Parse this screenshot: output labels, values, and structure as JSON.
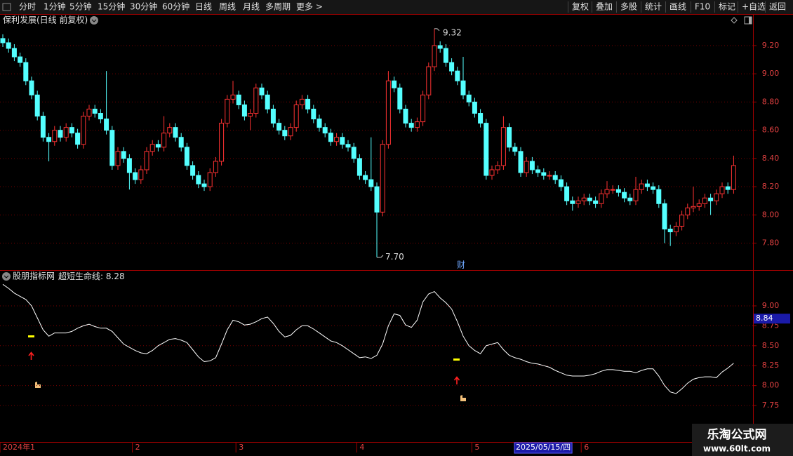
{
  "toolbar": {
    "periods": [
      "分时",
      "1分钟",
      "5分钟",
      "15分钟",
      "30分钟",
      "60分钟",
      "日线",
      "周线",
      "月线",
      "多周期",
      "更多 >"
    ],
    "active_period_index": 6,
    "actions": [
      "复权",
      "叠加",
      "多股",
      "统计",
      "画线",
      "F10",
      "标记",
      "+自选",
      "返回"
    ]
  },
  "watermark": {
    "title": "乐淘公式网",
    "url": "www.60lt.com"
  },
  "chart_data": [
    {
      "type": "candlestick",
      "title": "保利发展(日线 前复权)",
      "categories": [
        "2024年1",
        null,
        null,
        null,
        null,
        null,
        null,
        null,
        null,
        null,
        null,
        null,
        null,
        null,
        null,
        null,
        null,
        null,
        null,
        null,
        null,
        null,
        null,
        "2",
        null,
        null,
        null,
        null,
        null,
        null,
        null,
        null,
        null,
        null,
        null,
        null,
        null,
        null,
        null,
        null,
        null,
        "3",
        null,
        null,
        null,
        null,
        null,
        null,
        null,
        null,
        null,
        null,
        null,
        null,
        null,
        null,
        null,
        null,
        null,
        null,
        null,
        null,
        "4",
        null,
        null,
        null,
        null,
        null,
        null,
        null,
        null,
        null,
        null,
        null,
        null,
        null,
        null,
        null,
        null,
        null,
        null,
        null,
        "5",
        null,
        null,
        null,
        null,
        null,
        null,
        null,
        null,
        null,
        null,
        null,
        null,
        null,
        null,
        null,
        null,
        null,
        null,
        "6",
        null,
        null,
        null,
        null,
        null,
        null,
        null,
        null,
        null,
        null,
        null,
        null,
        null,
        null,
        null,
        null,
        null,
        null,
        null,
        null,
        null,
        null,
        null,
        null,
        null,
        null
      ],
      "open": [
        9.25,
        9.22,
        9.18,
        9.12,
        9.08,
        8.95,
        8.85,
        8.7,
        8.55,
        8.52,
        8.6,
        8.55,
        8.62,
        8.58,
        8.5,
        8.7,
        8.75,
        8.72,
        8.68,
        8.6,
        8.35,
        8.45,
        8.4,
        8.3,
        8.25,
        8.32,
        8.45,
        8.5,
        8.48,
        8.58,
        8.62,
        8.55,
        8.48,
        8.35,
        8.28,
        8.22,
        8.2,
        8.3,
        8.38,
        8.65,
        8.82,
        8.85,
        8.78,
        8.7,
        8.72,
        8.9,
        8.85,
        8.75,
        8.65,
        8.6,
        8.56,
        8.62,
        8.78,
        8.82,
        8.75,
        8.68,
        8.62,
        8.58,
        8.52,
        8.55,
        8.5,
        8.48,
        8.4,
        8.28,
        8.25,
        8.2,
        8.02,
        8.5,
        8.95,
        8.9,
        8.75,
        8.65,
        8.62,
        8.66,
        8.85,
        9.05,
        9.2,
        9.18,
        9.08,
        9.02,
        8.95,
        8.85,
        8.8,
        8.72,
        8.65,
        8.28,
        8.32,
        8.35,
        8.62,
        8.48,
        8.45,
        8.3,
        8.38,
        8.32,
        8.3,
        8.28,
        8.28,
        8.25,
        8.2,
        8.1,
        8.08,
        8.1,
        8.12,
        8.1,
        8.08,
        8.15,
        8.18,
        8.18,
        8.16,
        8.12,
        8.1,
        8.18,
        8.22,
        8.2,
        8.18,
        8.08,
        7.9,
        7.88,
        7.92,
        8.0,
        8.05,
        8.06,
        8.08,
        8.12,
        8.1,
        8.15,
        8.2,
        8.18
      ],
      "high": [
        9.28,
        9.25,
        9.21,
        9.15,
        9.11,
        8.98,
        8.88,
        8.73,
        8.58,
        8.63,
        8.63,
        8.65,
        8.65,
        8.61,
        8.73,
        8.78,
        8.78,
        8.75,
        9.02,
        8.63,
        8.48,
        8.48,
        8.43,
        8.33,
        8.35,
        8.48,
        8.53,
        8.53,
        8.7,
        8.65,
        8.65,
        8.58,
        8.51,
        8.38,
        8.31,
        8.25,
        8.33,
        8.41,
        8.68,
        8.85,
        8.95,
        8.88,
        8.81,
        8.75,
        8.93,
        8.93,
        8.88,
        8.78,
        8.68,
        8.63,
        8.65,
        8.81,
        8.85,
        8.85,
        8.78,
        8.71,
        8.65,
        8.61,
        8.58,
        8.58,
        8.53,
        8.51,
        8.43,
        8.31,
        8.55,
        8.23,
        8.53,
        9.02,
        8.98,
        8.93,
        8.78,
        8.68,
        8.69,
        8.88,
        9.08,
        9.32,
        9.23,
        9.21,
        9.11,
        9.05,
        9.12,
        8.88,
        8.83,
        8.75,
        8.68,
        8.35,
        8.38,
        8.7,
        8.65,
        8.51,
        8.48,
        8.41,
        8.41,
        8.35,
        8.33,
        8.31,
        8.31,
        8.28,
        8.23,
        8.13,
        8.13,
        8.15,
        8.15,
        8.13,
        8.18,
        8.24,
        8.21,
        8.21,
        8.19,
        8.15,
        8.27,
        8.25,
        8.25,
        8.23,
        8.21,
        8.11,
        7.93,
        7.95,
        8.03,
        8.08,
        8.2,
        8.11,
        8.15,
        8.15,
        8.18,
        8.23,
        8.23,
        8.42
      ],
      "low": [
        9.19,
        9.15,
        9.09,
        9.05,
        8.92,
        8.82,
        8.67,
        8.52,
        8.38,
        8.49,
        8.52,
        8.52,
        8.55,
        8.47,
        8.47,
        8.67,
        8.69,
        8.65,
        8.57,
        8.32,
        8.32,
        8.37,
        8.18,
        8.22,
        8.22,
        8.29,
        8.42,
        8.45,
        8.45,
        8.55,
        8.52,
        8.45,
        8.32,
        8.25,
        8.19,
        8.17,
        8.17,
        8.27,
        8.35,
        8.62,
        8.79,
        8.75,
        8.67,
        8.6,
        8.69,
        8.82,
        8.72,
        8.62,
        8.57,
        8.53,
        8.53,
        8.59,
        8.75,
        8.72,
        8.65,
        8.59,
        8.55,
        8.49,
        8.49,
        8.47,
        8.45,
        8.37,
        8.25,
        8.22,
        8.17,
        7.7,
        7.99,
        8.47,
        8.87,
        8.72,
        8.62,
        8.59,
        8.59,
        8.63,
        8.82,
        9.02,
        9.15,
        9.05,
        8.99,
        8.92,
        8.82,
        8.77,
        8.69,
        8.62,
        8.25,
        8.25,
        8.29,
        8.32,
        8.45,
        8.42,
        8.27,
        8.27,
        8.29,
        8.27,
        8.25,
        8.25,
        8.22,
        8.17,
        8.07,
        8.03,
        8.05,
        8.07,
        8.07,
        8.05,
        8.05,
        8.12,
        8.15,
        8.13,
        8.09,
        8.07,
        8.07,
        8.15,
        8.17,
        8.15,
        8.05,
        7.8,
        7.78,
        7.85,
        7.89,
        7.97,
        8.02,
        8.03,
        8.05,
        8.0,
        8.07,
        8.12,
        8.15,
        8.15
      ],
      "close": [
        9.22,
        9.18,
        9.12,
        9.08,
        8.95,
        8.85,
        8.7,
        8.55,
        8.52,
        8.6,
        8.55,
        8.62,
        8.58,
        8.5,
        8.7,
        8.75,
        8.72,
        8.68,
        8.6,
        8.35,
        8.45,
        8.4,
        8.3,
        8.25,
        8.32,
        8.45,
        8.5,
        8.48,
        8.58,
        8.62,
        8.55,
        8.48,
        8.35,
        8.28,
        8.22,
        8.2,
        8.3,
        8.38,
        8.65,
        8.82,
        8.85,
        8.78,
        8.7,
        8.72,
        8.9,
        8.85,
        8.75,
        8.65,
        8.6,
        8.56,
        8.62,
        8.78,
        8.82,
        8.75,
        8.68,
        8.62,
        8.58,
        8.52,
        8.55,
        8.5,
        8.48,
        8.4,
        8.28,
        8.25,
        8.2,
        8.02,
        8.5,
        8.95,
        8.9,
        8.75,
        8.65,
        8.62,
        8.66,
        8.85,
        9.05,
        9.2,
        9.18,
        9.08,
        9.02,
        8.95,
        8.85,
        8.8,
        8.72,
        8.65,
        8.28,
        8.32,
        8.35,
        8.62,
        8.48,
        8.45,
        8.3,
        8.38,
        8.32,
        8.3,
        8.28,
        8.28,
        8.25,
        8.2,
        8.1,
        8.08,
        8.1,
        8.12,
        8.1,
        8.08,
        8.15,
        8.18,
        8.18,
        8.16,
        8.12,
        8.1,
        8.18,
        8.22,
        8.2,
        8.18,
        8.08,
        7.9,
        7.88,
        7.92,
        8.0,
        8.05,
        8.06,
        8.08,
        8.12,
        8.1,
        8.15,
        8.2,
        8.18,
        8.35
      ],
      "up_color": "#ff3232",
      "down_color": "#54ffff",
      "ylim": [
        7.634,
        9.334
      ],
      "yticks": [
        {
          "value": 7.8,
          "label": "7.80"
        },
        {
          "value": 8.0,
          "label": "8.00"
        },
        {
          "value": 8.2,
          "label": "8.20"
        },
        {
          "value": 8.4,
          "label": "8.40"
        },
        {
          "value": 8.6,
          "label": "8.60"
        },
        {
          "value": 8.8,
          "label": "8.80"
        },
        {
          "value": 9.0,
          "label": "9.00"
        },
        {
          "value": 9.2,
          "label": "9.20"
        }
      ],
      "grid": true,
      "high_label": "9.32",
      "low_label": "7.70",
      "annotation": "财",
      "cursor_date": "2025/05/15/四"
    },
    {
      "type": "line",
      "title": "股朋指标网",
      "series": [
        {
          "name": "超短生命线:",
          "color": "#ffffff",
          "value_label": "8.28",
          "values": [
            9.27,
            9.22,
            9.16,
            9.12,
            9.08,
            9.0,
            8.85,
            8.7,
            8.62,
            8.66,
            8.66,
            8.66,
            8.68,
            8.72,
            8.75,
            8.77,
            8.74,
            8.72,
            8.72,
            8.68,
            8.6,
            8.52,
            8.48,
            8.44,
            8.41,
            8.4,
            8.44,
            8.5,
            8.54,
            8.58,
            8.59,
            8.57,
            8.54,
            8.45,
            8.36,
            8.3,
            8.31,
            8.35,
            8.52,
            8.7,
            8.82,
            8.8,
            8.76,
            8.77,
            8.8,
            8.84,
            8.86,
            8.78,
            8.68,
            8.61,
            8.63,
            8.7,
            8.75,
            8.75,
            8.71,
            8.66,
            8.61,
            8.56,
            8.54,
            8.5,
            8.45,
            8.4,
            8.35,
            8.36,
            8.34,
            8.38,
            8.52,
            8.75,
            8.9,
            8.88,
            8.76,
            8.73,
            8.82,
            9.05,
            9.15,
            9.18,
            9.1,
            9.04,
            8.96,
            8.8,
            8.62,
            8.5,
            8.44,
            8.4,
            8.5,
            8.52,
            8.54,
            8.45,
            8.38,
            8.35,
            8.33,
            8.3,
            8.28,
            8.27,
            8.25,
            8.23,
            8.19,
            8.16,
            8.13,
            8.12,
            8.12,
            8.12,
            8.13,
            8.15,
            8.18,
            8.2,
            8.2,
            8.19,
            8.18,
            8.18,
            8.16,
            8.19,
            8.21,
            8.21,
            8.12,
            8.0,
            7.92,
            7.9,
            7.96,
            8.03,
            8.08,
            8.1,
            8.11,
            8.11,
            8.1,
            8.17,
            8.22,
            8.28
          ]
        }
      ],
      "ylim": [
        7.31,
        9.405
      ],
      "yticks": [
        {
          "value": 7.75,
          "label": "7.75"
        },
        {
          "value": 8.0,
          "label": "8.00"
        },
        {
          "value": 8.25,
          "label": "8.25"
        },
        {
          "value": 8.5,
          "label": "8.50"
        },
        {
          "value": 8.75,
          "label": "8.75"
        },
        {
          "value": 9.0,
          "label": "9.00"
        }
      ],
      "grid": true,
      "cursor_value": {
        "value": 8.84,
        "label": "8.84"
      }
    }
  ]
}
